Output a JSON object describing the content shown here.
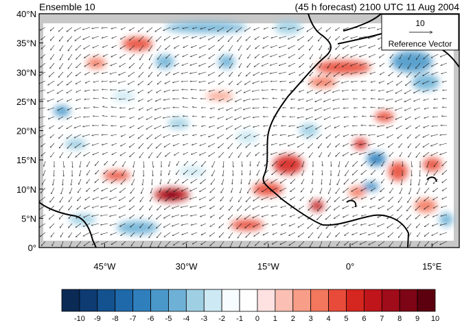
{
  "titles": {
    "left": "Ensemble 10",
    "right": "(45 h forecast) 2100 UTC 11 Aug 2004"
  },
  "map": {
    "lat_ticks": [
      "40°N",
      "35°N",
      "30°N",
      "25°N",
      "20°N",
      "15°N",
      "10°N",
      "5°N",
      "0°"
    ],
    "lon_ticks": [
      "45°W",
      "30°W",
      "15°W",
      "0°",
      "15°E"
    ],
    "lon_range": [
      -57,
      20
    ],
    "lat_range": [
      0,
      40
    ]
  },
  "reference_vector": {
    "value": "10",
    "label": "Reference Vector"
  },
  "colorbar": {
    "labels": [
      "-10",
      "-9",
      "-8",
      "-7",
      "-6",
      "-5",
      "-4",
      "-3",
      "-2",
      "-1",
      "0",
      "1",
      "2",
      "3",
      "4",
      "5",
      "6",
      "7",
      "8",
      "9",
      "10"
    ],
    "colors": [
      "#0b2a56",
      "#0d3b72",
      "#14528f",
      "#1f69aa",
      "#2f7fbc",
      "#4a98c9",
      "#6fb1d6",
      "#9fcfe3",
      "#cde9f3",
      "#f7fcff",
      "#ffffff",
      "#fde2e1",
      "#fbc0b3",
      "#f89d87",
      "#f2775d",
      "#e84b39",
      "#d5261f",
      "#bf151b",
      "#a00c19",
      "#7d0515",
      "#5c000f"
    ]
  },
  "colors": {
    "land_mask": "#c8c8c8",
    "coast": "#000000",
    "vector": "#1a1a1a"
  }
}
